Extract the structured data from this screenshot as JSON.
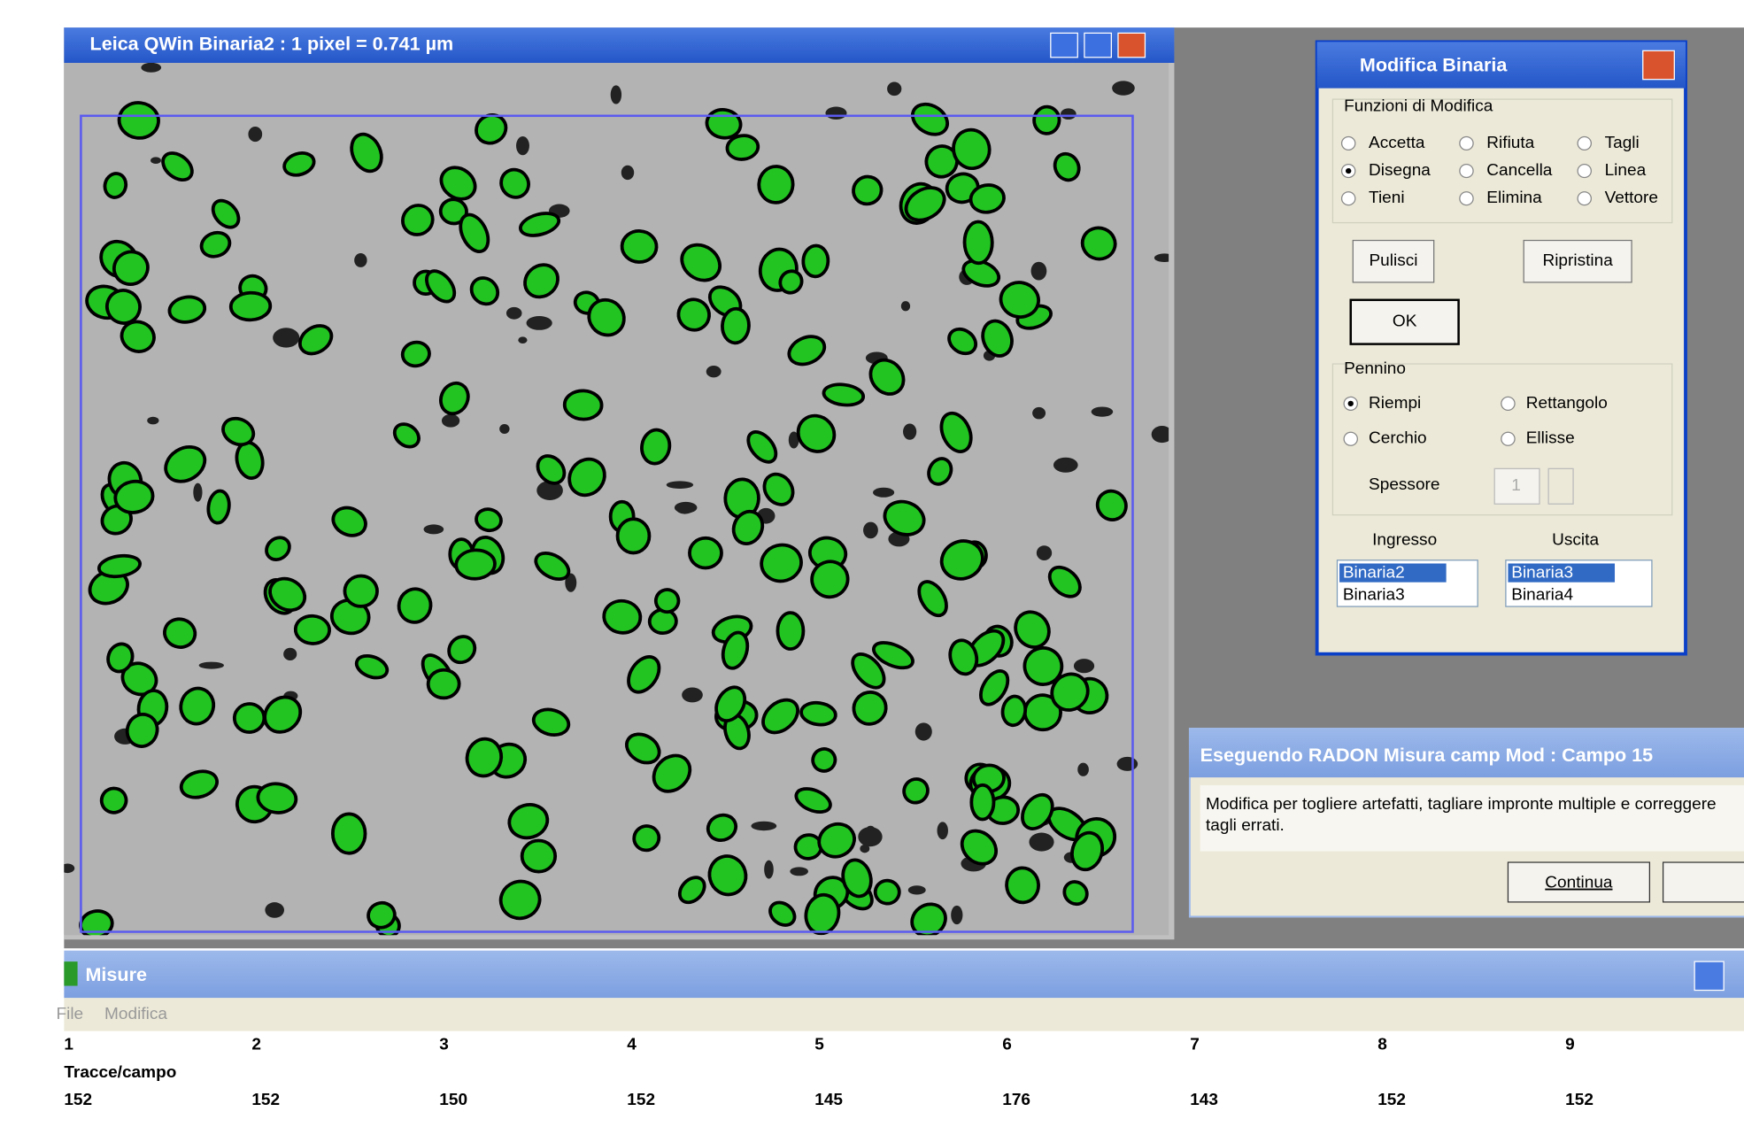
{
  "image_window": {
    "title": "Leica QWin  Binaria2 : 1 pixel = 0.741 µm"
  },
  "dialog": {
    "title": "Modifica Binaria",
    "functions_group": "Funzioni di Modifica",
    "functions": [
      "Accetta",
      "Rifiuta",
      "Tagli",
      "Disegna",
      "Cancella",
      "Linea",
      "Tieni",
      "Elimina",
      "Vettore"
    ],
    "selected_function": 3,
    "buttons": [
      "Pulisci",
      "Ripristina",
      "OK"
    ],
    "pen_group": "Pennino",
    "pen_options": [
      "Riempi",
      "Rettangolo",
      "Cerchio",
      "Ellisse"
    ],
    "selected_pen": 0,
    "thickness_label": "Spessore",
    "thickness_value": "1",
    "input_label": "Ingresso",
    "output_label": "Uscita",
    "input_list": [
      "Binaria2",
      "Binaria3"
    ],
    "output_list": [
      "Binaria3",
      "Binaria4"
    ]
  },
  "prompt": {
    "title": "Eseguendo RADON Misura camp Mod : Campo 15",
    "message": [
      "Modifica per togliere artefatti, tagliare impronte multiple e correggere",
      "tagli errati."
    ],
    "button": "Continua"
  },
  "measure_window": {
    "title": "Misure",
    "menu": [
      "File",
      "Modifica"
    ],
    "columns": [
      "1",
      "2",
      "3",
      "4",
      "5",
      "6",
      "7",
      "8",
      "9"
    ],
    "row_label": "Tracce/campo",
    "values": [
      152,
      152,
      150,
      152,
      145,
      176,
      143,
      152,
      152
    ]
  }
}
